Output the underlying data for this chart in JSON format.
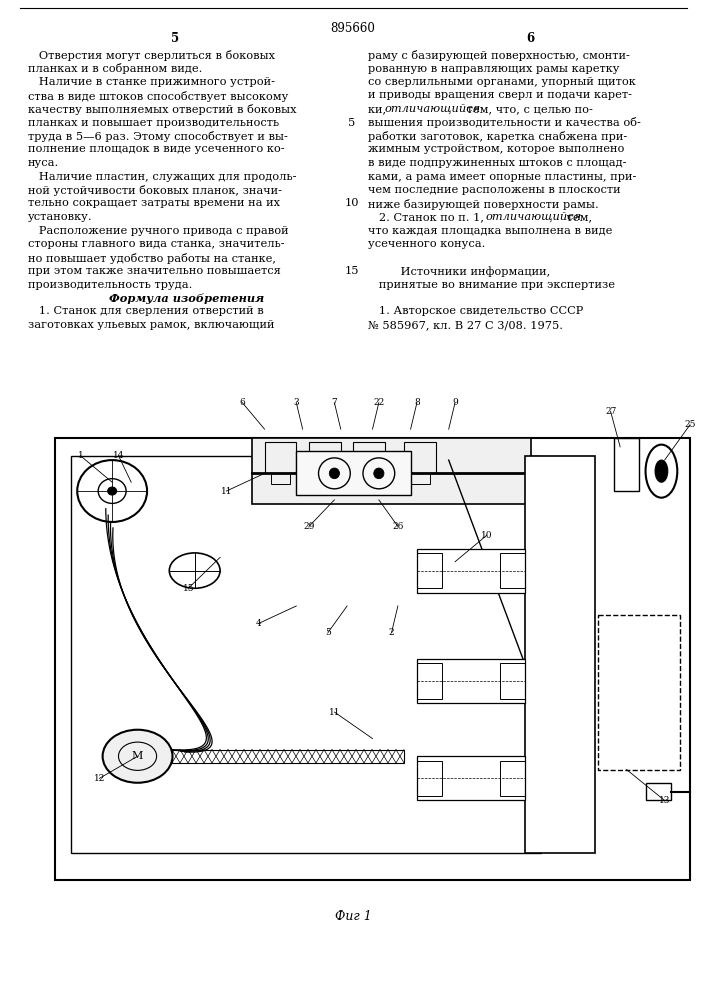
{
  "page_number_center": "895660",
  "col_left_num": "5",
  "col_right_num": "6",
  "bg_color": "#ffffff",
  "text_color": "#1a1a1a",
  "font_size": 8.2,
  "left_col_text": [
    "   Отверстия могут сверлиться в боковых",
    "планках и в собранном виде.",
    "   Наличие в станке прижимного устрой-",
    "ства в виде штоков способствует высокому",
    "качеству выполняемых отверстий в боковых",
    "планках и повышает производительность",
    "труда в 5—6 раз. Этому способствует и вы-",
    "полнение площадок в виде усеченного ко-",
    "нуса.",
    "   Наличие пластин, служащих для продоль-",
    "ной устойчивости боковых планок, значи-",
    "тельно сокращает затраты времени на их",
    "установку.",
    "   Расположение ручного привода с правой",
    "стороны главного вида станка, значитель-",
    "но повышает удобство работы на станке,",
    "при этом также значительно повышается",
    "производительность труда.",
    "Формула изобретения",
    "   1. Станок для сверления отверстий в",
    "заготовках ульевых рамок, включающий"
  ],
  "right_col_text": [
    "раму с базирующей поверхностью, смонти-",
    "рованную в направляющих рамы каретку",
    "со сверлильными органами, упорный щиток",
    "и приводы вращения сверл и подачи карет-",
    "ки, отличающийся тем, что, с целью по-",
    "вышения производительности и качества об-",
    "работки заготовок, каретка снабжена при-",
    "жимным устройством, которое выполнено",
    "в виде подпружиненных штоков с площад-",
    "ками, а рама имеет опорные пластины, при-",
    "чем последние расположены в плоскости",
    "ниже базирующей поверхности рамы.",
    "   2. Станок по п. 1, отличающийся тем,",
    "что каждая площадка выполнена в виде",
    "усеченного конуса.",
    "",
    "         Источники информации,",
    "   принятые во внимание при экспертизе",
    "",
    "   1. Авторское свидетельство СССР",
    "№ 585967, кл. В 27 С 3/08. 1975."
  ],
  "figure_caption": "Фиг 1"
}
